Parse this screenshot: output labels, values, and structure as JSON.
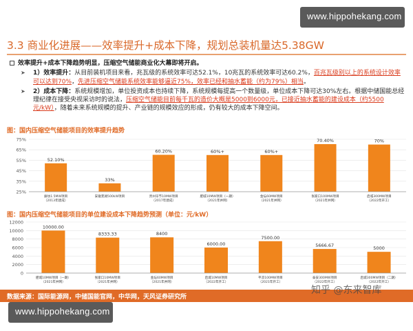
{
  "watermark": {
    "top": "www.hippohekang.com",
    "bottom": "www.hippohekang.com"
  },
  "title": "3.3 商业化进展——效率提升+成本下降，规划总装机量达5.38GW",
  "bullets": {
    "lead": "效率提升+成本下降趋势明显，压缩空气储能商业化大幕即将开启。",
    "efficiency": {
      "head": "1）效率提升：",
      "text_before": "从目前装机项目来看，兆瓦级的系统效率可达52.1%，10兆瓦的系统效率可达60.2%，",
      "highlight1": "百兆瓦级别以上的系统设计效率可以达到70%",
      "text_mid": "，",
      "highlight2": "先进压缩空气储能系统效率能够逼近75%，效率已经和抽水蓄能（约为79%）相当",
      "text_after": "。"
    },
    "cost": {
      "head": "2）成本下降：",
      "text_before": "系统规模增加，单位投资成本也持续下降，系统规模每提高一个数量级，单位成本下降可达30%左右。根据中储国能总经理纪律在接受央视采访时的说法，",
      "highlight": "压缩空气储能目前每千瓦的造价大概是5000到6000元，已接近抽水蓄能的建设成本（约5500元/kW）",
      "text_after": "，随着未来系统规模的提升、产业链的规模效应的形成，仍有较大的成本下降空间。"
    }
  },
  "footer": {
    "source": "数据来源：国际能源网，中储国能官网，中华网，天风证券研究所"
  },
  "corner_mark": "知乎 @东来智库",
  "colors": {
    "accent": "#e06b27",
    "bar": "#f0851c",
    "highlight": "#d93a1b"
  },
  "chart_data": [
    {
      "type": "bar",
      "title": "图：国内压缩空气储能项目的效率提升趋势",
      "ylim": [
        25,
        75
      ],
      "yticks": [
        "25%",
        "35%",
        "45%",
        "55%",
        "65%",
        "75%"
      ],
      "ytick_values": [
        25,
        35,
        45,
        55,
        65,
        75
      ],
      "categories": [
        [
          "廊坊1.5MW项目",
          "（2013年建成）"
        ],
        [
          "安徽芜湖500kW项目",
          ""
        ],
        [
          "贵州毕节10MW项目",
          "（2017年建成）"
        ],
        [
          "肥城10MW项目（一期）",
          "（2021年并网）"
        ],
        [
          "金坛60MW项目",
          "（2021年并网）"
        ],
        [
          "张家口100MW项目",
          "（2021年并网）"
        ],
        [
          "启城300MW项目",
          "（2022年开工）"
        ]
      ],
      "values": [
        52.1,
        33,
        60.2,
        60,
        60,
        70.4,
        70
      ],
      "labels": [
        "52.10%",
        "33%",
        "60.20%",
        "60%+",
        "60%+",
        "70.40%",
        "70%"
      ],
      "grid": true
    },
    {
      "type": "bar",
      "title": "图：国内压缩空气储能项目的单位建设成本下降趋势预测（单位：元/kW）",
      "ylim": [
        0,
        12000
      ],
      "yticks": [
        "0",
        "2000",
        "4000",
        "6000",
        "8000",
        "10000",
        "12000"
      ],
      "ytick_values": [
        0,
        2000,
        4000,
        6000,
        8000,
        10000,
        12000
      ],
      "categories": [
        [
          "肥城10MW项目（一期）",
          "（2021年并网）"
        ],
        [
          "张家口10MW项目",
          "（2021年并网）"
        ],
        [
          "金坛60MW项目",
          "（2021年并网）"
        ],
        [
          "启城10MW项目",
          "（2022年开工）"
        ],
        [
          "平凉100MW项目",
          "（2021年开工）"
        ],
        [
          "泰安300MW项目",
          "（2022年开工）"
        ],
        [
          "启城300MW项目（二期）",
          "（2022年开工）"
        ]
      ],
      "values": [
        10000,
        8333.33,
        8400,
        6000,
        7500,
        5666.67,
        5000
      ],
      "labels": [
        "10000.00",
        "8333.33",
        "8400",
        "6000.00",
        "7500.00",
        "5666.67",
        "5000"
      ],
      "grid": true
    }
  ]
}
